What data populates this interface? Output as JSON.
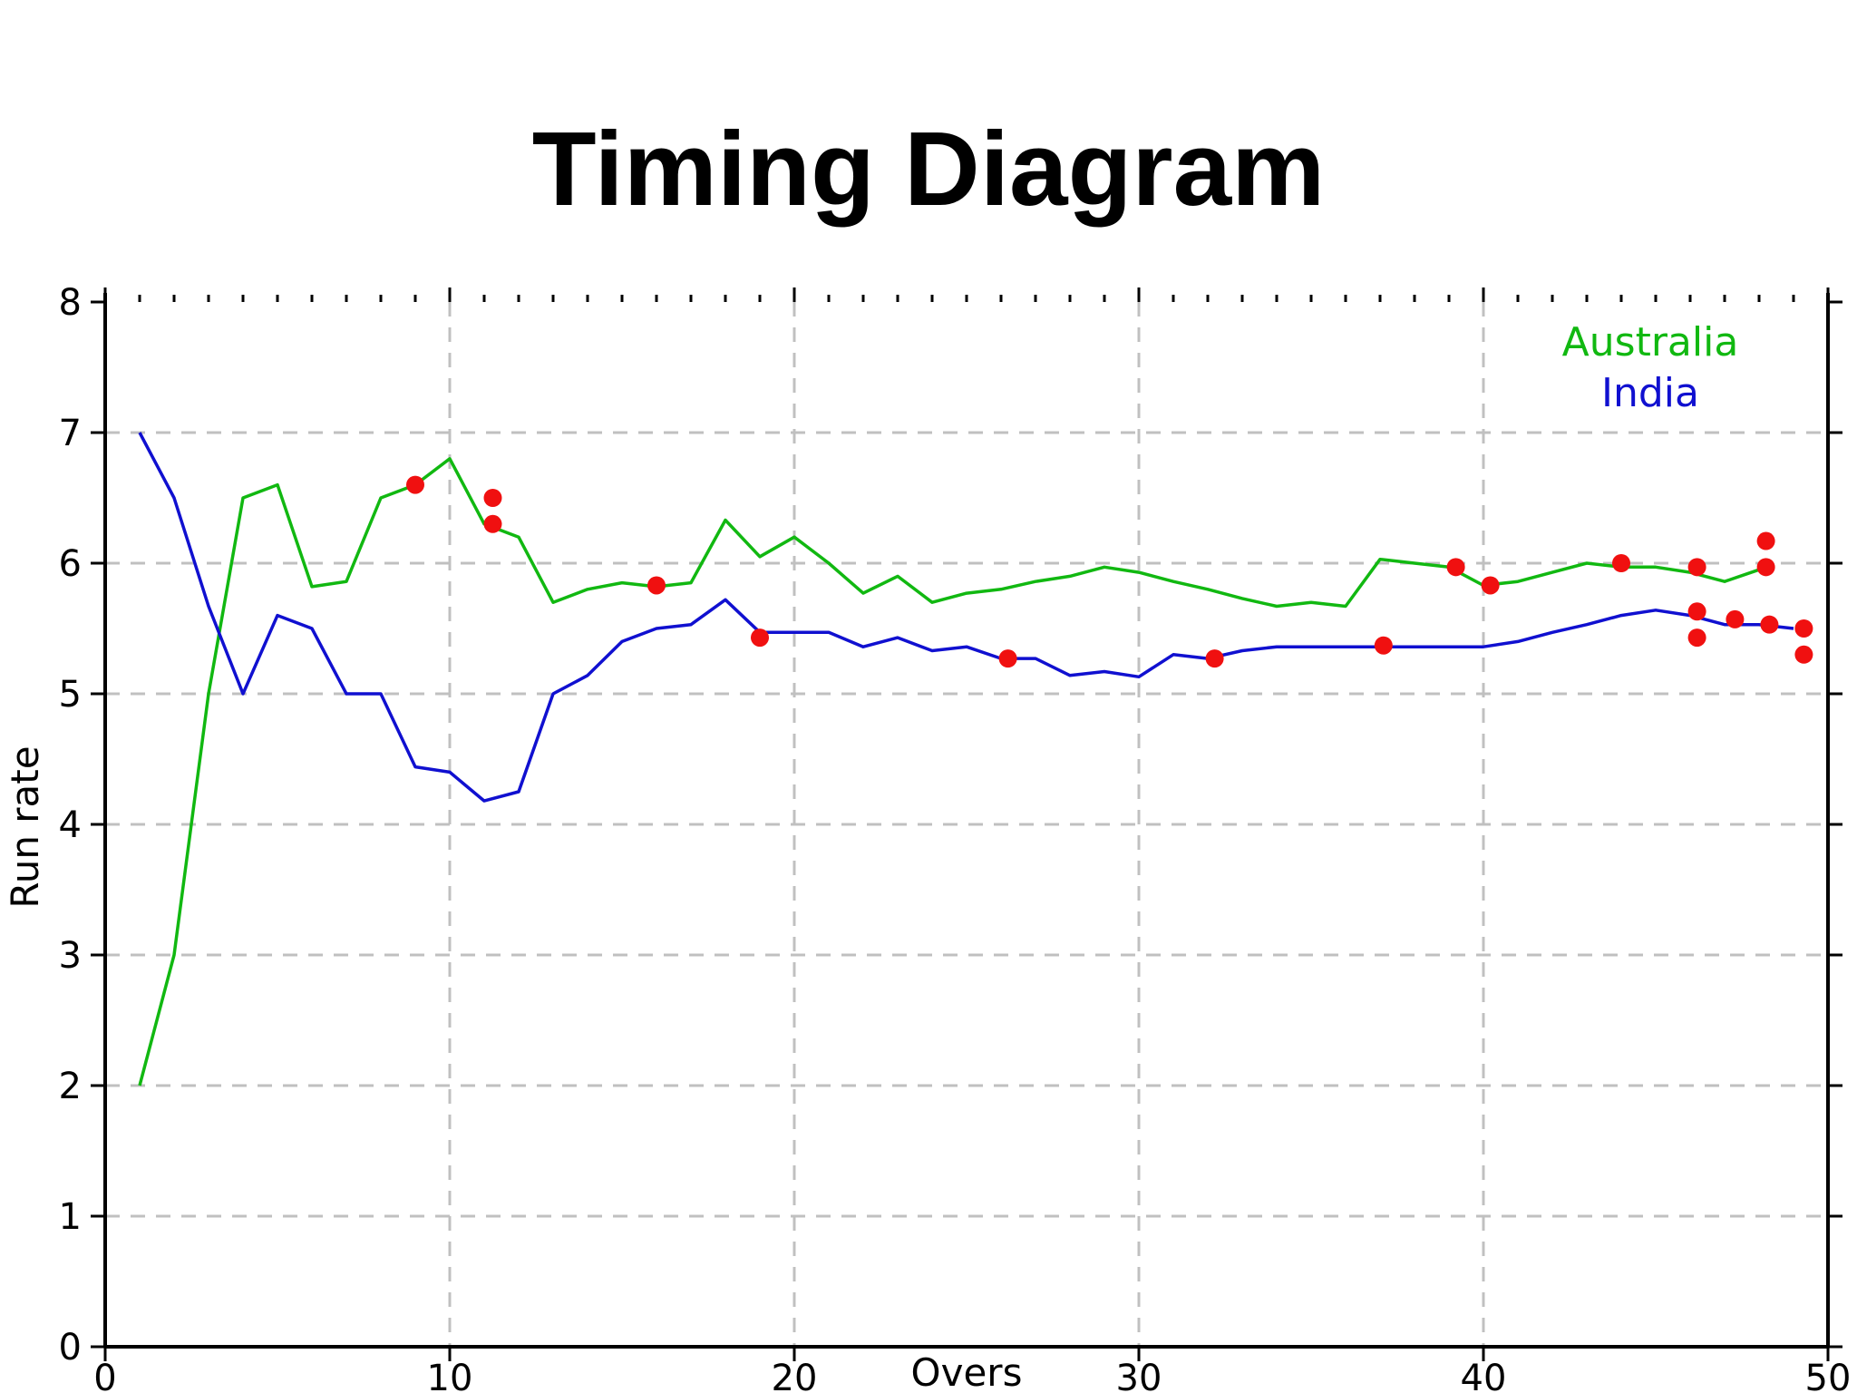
{
  "slide": {
    "title": "Timing Diagram"
  },
  "chart_data": {
    "type": "line",
    "title": "",
    "xlabel": "Overs",
    "ylabel": "Run rate",
    "xlim": [
      0,
      50
    ],
    "ylim": [
      0,
      8
    ],
    "xticks": [
      0,
      10,
      20,
      30,
      40,
      50
    ],
    "yticks": [
      0,
      1,
      2,
      3,
      4,
      5,
      6,
      7,
      8
    ],
    "grid": true,
    "legend_position": "top-right",
    "series": [
      {
        "name": "Australia",
        "color": "#11b811",
        "x": [
          1,
          2,
          3,
          4,
          5,
          6,
          7,
          8,
          9,
          10,
          11,
          12,
          13,
          14,
          15,
          16,
          17,
          18,
          19,
          20,
          21,
          22,
          23,
          24,
          25,
          26,
          27,
          28,
          29,
          30,
          31,
          32,
          33,
          34,
          35,
          36,
          37,
          38,
          39,
          40,
          41,
          42,
          43,
          44,
          45,
          46,
          47,
          48
        ],
        "y": [
          2.0,
          3.0,
          5.0,
          6.5,
          6.6,
          5.82,
          5.86,
          6.5,
          6.6,
          6.8,
          6.3,
          6.2,
          5.7,
          5.8,
          5.85,
          5.82,
          5.85,
          6.33,
          6.05,
          6.2,
          6.0,
          5.77,
          5.9,
          5.7,
          5.77,
          5.8,
          5.86,
          5.9,
          5.97,
          5.93,
          5.86,
          5.8,
          5.73,
          5.67,
          5.7,
          5.67,
          6.03,
          6.0,
          5.97,
          5.83,
          5.86,
          5.93,
          6.0,
          5.97,
          5.97,
          5.93,
          5.86,
          5.95
        ]
      },
      {
        "name": "India",
        "color": "#1010d0",
        "x": [
          1,
          2,
          3,
          4,
          5,
          6,
          7,
          8,
          9,
          10,
          11,
          12,
          13,
          14,
          15,
          16,
          17,
          18,
          19,
          20,
          21,
          22,
          23,
          24,
          25,
          26,
          27,
          28,
          29,
          30,
          31,
          32,
          33,
          34,
          35,
          36,
          37,
          38,
          39,
          40,
          41,
          42,
          43,
          44,
          45,
          46,
          47,
          48,
          49
        ],
        "y": [
          7.0,
          6.5,
          5.67,
          5.0,
          5.6,
          5.5,
          5.0,
          5.0,
          4.44,
          4.4,
          4.18,
          4.25,
          5.0,
          5.14,
          5.4,
          5.5,
          5.53,
          5.72,
          5.47,
          5.47,
          5.47,
          5.36,
          5.43,
          5.33,
          5.36,
          5.27,
          5.27,
          5.14,
          5.17,
          5.13,
          5.3,
          5.27,
          5.33,
          5.36,
          5.36,
          5.36,
          5.36,
          5.36,
          5.36,
          5.36,
          5.4,
          5.47,
          5.53,
          5.6,
          5.64,
          5.6,
          5.53,
          5.53,
          5.5
        ]
      }
    ],
    "wickets": {
      "color": "#f01010",
      "points": [
        [
          9,
          6.6
        ],
        [
          11.25,
          6.5
        ],
        [
          11.25,
          6.3
        ],
        [
          16,
          5.83
        ],
        [
          44,
          6.0
        ],
        [
          46.2,
          5.97
        ],
        [
          48.2,
          6.17
        ],
        [
          48.2,
          5.97
        ],
        [
          39.2,
          5.97
        ],
        [
          40.2,
          5.83
        ],
        [
          19,
          5.43
        ],
        [
          26.2,
          5.27
        ],
        [
          32.2,
          5.27
        ],
        [
          37.1,
          5.37
        ],
        [
          46.2,
          5.63
        ],
        [
          46.2,
          5.43
        ],
        [
          47.3,
          5.57
        ],
        [
          48.3,
          5.53
        ],
        [
          49.3,
          5.5
        ],
        [
          49.3,
          5.3
        ]
      ]
    },
    "frame_color": "#000000",
    "grid_color": "#c0c0c0"
  }
}
